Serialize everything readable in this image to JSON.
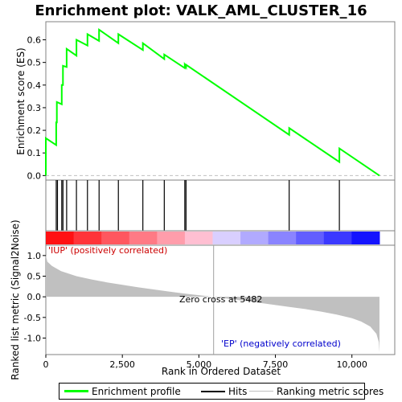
{
  "chart_data": {
    "type": "line",
    "title": "Enrichment plot: VALK_AML_CLUSTER_16",
    "enrichment_panel": {
      "ylabel": "Enrichment score (ES)",
      "ylim": [
        -0.02,
        0.68
      ],
      "yticks": [
        "0.0",
        "0.1",
        "0.2",
        "0.3",
        "0.4",
        "0.5",
        "0.6"
      ],
      "series": [
        {
          "name": "Enrichment profile",
          "color": "#00ff00",
          "x": [
            0,
            0,
            340,
            340,
            360,
            360,
            520,
            520,
            560,
            560,
            680,
            680,
            1000,
            1000,
            1360,
            1360,
            1740,
            1740,
            2370,
            2370,
            3170,
            3170,
            3870,
            3870,
            4540,
            4540,
            4580,
            4580,
            7950,
            7950,
            9590,
            9590,
            10900
          ],
          "y": [
            0.0,
            0.165,
            0.135,
            0.235,
            0.235,
            0.325,
            0.315,
            0.4,
            0.4,
            0.485,
            0.48,
            0.56,
            0.53,
            0.6,
            0.575,
            0.625,
            0.595,
            0.645,
            0.585,
            0.625,
            0.555,
            0.585,
            0.515,
            0.535,
            0.475,
            0.49,
            0.48,
            0.49,
            0.18,
            0.21,
            0.06,
            0.12,
            0.0
          ]
        }
      ]
    },
    "hits": [
      340,
      380,
      520,
      560,
      680,
      1000,
      1360,
      1740,
      2370,
      3170,
      3870,
      4540,
      4580,
      7950,
      9590
    ],
    "ranking_panel": {
      "ylabel": "Ranked list metric (Signal2Noise)",
      "ylim": [
        -1.4,
        1.25
      ],
      "yticks": [
        "-1.0",
        "-0.5",
        "0.0",
        "0.5",
        "1.0"
      ],
      "series_name": "Ranking metric scores",
      "fill_color": "#c0c0c0",
      "profile_x": [
        0,
        50,
        200,
        500,
        1000,
        1500,
        2000,
        2500,
        3000,
        3500,
        4000,
        4500,
        5000,
        5482,
        6000,
        6500,
        7000,
        7500,
        8000,
        8500,
        9000,
        9500,
        10000,
        10300,
        10600,
        10800,
        10880,
        10900
      ],
      "profile_y": [
        1.0,
        0.85,
        0.75,
        0.62,
        0.5,
        0.42,
        0.35,
        0.29,
        0.23,
        0.18,
        0.13,
        0.08,
        0.04,
        0.0,
        -0.05,
        -0.1,
        -0.15,
        -0.2,
        -0.25,
        -0.3,
        -0.36,
        -0.43,
        -0.52,
        -0.6,
        -0.72,
        -0.9,
        -1.1,
        -1.35
      ],
      "annotations": {
        "positive": "'IUP' (positively correlated)",
        "zero_cross": "Zero cross at 5482",
        "negative": "'EP' (negatively correlated)"
      },
      "zero_cross": 5482
    },
    "xlabel": "Rank in Ordered Dataset",
    "xlim": [
      0,
      11400
    ],
    "xticks": [
      "0",
      "2,500",
      "5,000",
      "7,500",
      "10,000"
    ],
    "color_band": {
      "positive_color": "#ff0000",
      "negative_color": "#0000ff"
    }
  },
  "legend": {
    "enrichment": "Enrichment profile",
    "hits": "Hits",
    "ranking": "Ranking metric scores"
  }
}
